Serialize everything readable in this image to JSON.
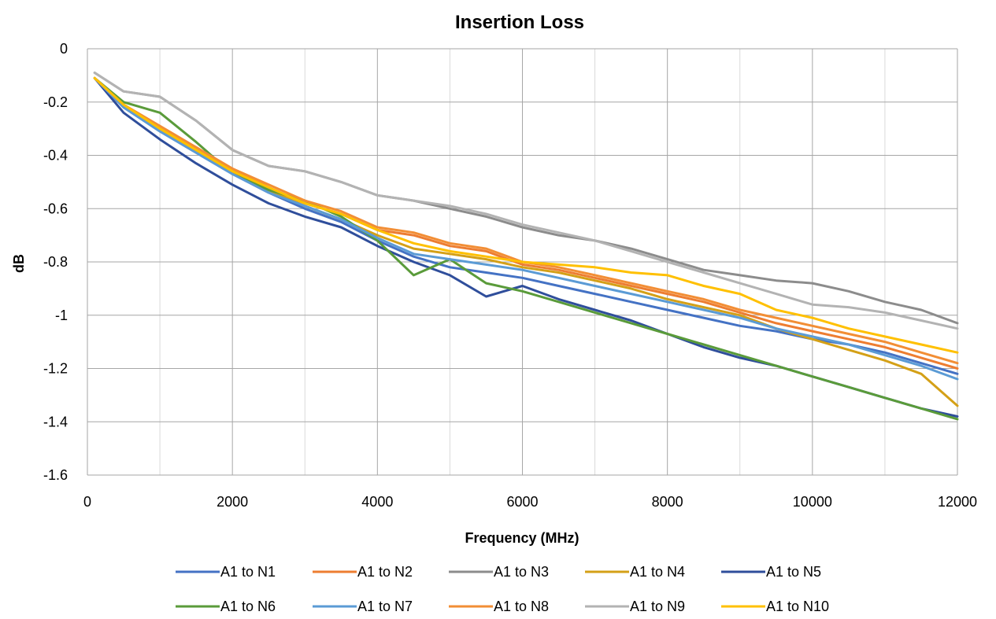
{
  "chart_data": {
    "type": "line",
    "title": "Insertion Loss",
    "xlabel": "Frequency (MHz)",
    "ylabel": "dB",
    "xlim": [
      0,
      12000
    ],
    "ylim": [
      -1.6,
      0
    ],
    "x_ticks": [
      0,
      2000,
      4000,
      6000,
      8000,
      10000,
      12000
    ],
    "x_tick_labels": [
      "0",
      "2000",
      "4000",
      "6000",
      "8000",
      "10000",
      "12000"
    ],
    "y_ticks": [
      0,
      -0.2,
      -0.4,
      -0.6,
      -0.8,
      -1,
      -1.2,
      -1.4,
      -1.6
    ],
    "y_tick_labels": [
      "0",
      "-0.2",
      "-0.4",
      "-0.6",
      "-0.8",
      "-1",
      "-1.2",
      "-1.4",
      "-1.6"
    ],
    "grid": true,
    "legend_position": "bottom",
    "x": [
      100,
      500,
      1000,
      1500,
      2000,
      2500,
      3000,
      3500,
      4000,
      4500,
      5000,
      5500,
      6000,
      6500,
      7000,
      7500,
      8000,
      8500,
      9000,
      9500,
      10000,
      10500,
      11000,
      11500,
      12000
    ],
    "series": [
      {
        "name": "A1 to N1",
        "color": "#4472C4",
        "values": [
          -0.11,
          -0.22,
          -0.31,
          -0.39,
          -0.47,
          -0.54,
          -0.6,
          -0.65,
          -0.72,
          -0.78,
          -0.82,
          -0.84,
          -0.86,
          -0.89,
          -0.92,
          -0.95,
          -0.98,
          -1.01,
          -1.04,
          -1.06,
          -1.09,
          -1.11,
          -1.14,
          -1.18,
          -1.22
        ]
      },
      {
        "name": "A1 to N2",
        "color": "#ED7D31",
        "values": [
          -0.11,
          -0.21,
          -0.3,
          -0.37,
          -0.45,
          -0.52,
          -0.58,
          -0.62,
          -0.68,
          -0.7,
          -0.74,
          -0.76,
          -0.81,
          -0.83,
          -0.86,
          -0.89,
          -0.92,
          -0.95,
          -0.99,
          -1.03,
          -1.06,
          -1.09,
          -1.12,
          -1.16,
          -1.2
        ]
      },
      {
        "name": "A1 to N3",
        "color": "#8C8C8C",
        "values": [
          -0.09,
          -0.16,
          -0.18,
          -0.27,
          -0.38,
          -0.44,
          -0.46,
          -0.5,
          -0.55,
          -0.57,
          -0.6,
          -0.63,
          -0.67,
          -0.7,
          -0.72,
          -0.75,
          -0.79,
          -0.83,
          -0.85,
          -0.87,
          -0.88,
          -0.91,
          -0.95,
          -0.98,
          -1.03
        ]
      },
      {
        "name": "A1 to N4",
        "color": "#D4A017",
        "values": [
          -0.11,
          -0.22,
          -0.3,
          -0.38,
          -0.46,
          -0.53,
          -0.59,
          -0.64,
          -0.7,
          -0.75,
          -0.77,
          -0.79,
          -0.82,
          -0.84,
          -0.87,
          -0.9,
          -0.94,
          -0.97,
          -1.0,
          -1.05,
          -1.09,
          -1.13,
          -1.17,
          -1.22,
          -1.34
        ]
      },
      {
        "name": "A1 to N5",
        "color": "#2F4E9B",
        "values": [
          -0.11,
          -0.24,
          -0.34,
          -0.43,
          -0.51,
          -0.58,
          -0.63,
          -0.67,
          -0.74,
          -0.8,
          -0.85,
          -0.93,
          -0.89,
          -0.94,
          -0.98,
          -1.02,
          -1.07,
          -1.12,
          -1.16,
          -1.19,
          -1.23,
          -1.27,
          -1.31,
          -1.35,
          -1.38
        ]
      },
      {
        "name": "A1 to N6",
        "color": "#5A9B3A",
        "values": [
          -0.11,
          -0.2,
          -0.24,
          -0.35,
          -0.47,
          -0.53,
          -0.57,
          -0.63,
          -0.72,
          -0.85,
          -0.79,
          -0.88,
          -0.91,
          -0.95,
          -0.99,
          -1.03,
          -1.07,
          -1.11,
          -1.15,
          -1.19,
          -1.23,
          -1.27,
          -1.31,
          -1.35,
          -1.39
        ]
      },
      {
        "name": "A1 to N7",
        "color": "#5B9BD5",
        "values": [
          -0.11,
          -0.22,
          -0.31,
          -0.39,
          -0.47,
          -0.54,
          -0.59,
          -0.64,
          -0.71,
          -0.77,
          -0.79,
          -0.81,
          -0.83,
          -0.86,
          -0.89,
          -0.92,
          -0.95,
          -0.98,
          -1.01,
          -1.05,
          -1.08,
          -1.11,
          -1.15,
          -1.19,
          -1.24
        ]
      },
      {
        "name": "A1 to N8",
        "color": "#F28E35",
        "values": [
          -0.11,
          -0.21,
          -0.29,
          -0.37,
          -0.45,
          -0.51,
          -0.57,
          -0.61,
          -0.67,
          -0.69,
          -0.73,
          -0.75,
          -0.8,
          -0.82,
          -0.85,
          -0.88,
          -0.91,
          -0.94,
          -0.98,
          -1.01,
          -1.04,
          -1.07,
          -1.1,
          -1.14,
          -1.18
        ]
      },
      {
        "name": "A1 to N9",
        "color": "#B3B3B3",
        "values": [
          -0.09,
          -0.16,
          -0.18,
          -0.27,
          -0.38,
          -0.44,
          -0.46,
          -0.5,
          -0.55,
          -0.57,
          -0.59,
          -0.62,
          -0.66,
          -0.69,
          -0.72,
          -0.76,
          -0.8,
          -0.84,
          -0.88,
          -0.92,
          -0.96,
          -0.97,
          -0.99,
          -1.02,
          -1.05
        ]
      },
      {
        "name": "A1 to N10",
        "color": "#FFC000",
        "values": [
          -0.11,
          -0.21,
          -0.3,
          -0.38,
          -0.46,
          -0.52,
          -0.58,
          -0.62,
          -0.68,
          -0.73,
          -0.76,
          -0.78,
          -0.8,
          -0.81,
          -0.82,
          -0.84,
          -0.85,
          -0.89,
          -0.92,
          -0.98,
          -1.01,
          -1.05,
          -1.08,
          -1.11,
          -1.14
        ]
      }
    ]
  }
}
